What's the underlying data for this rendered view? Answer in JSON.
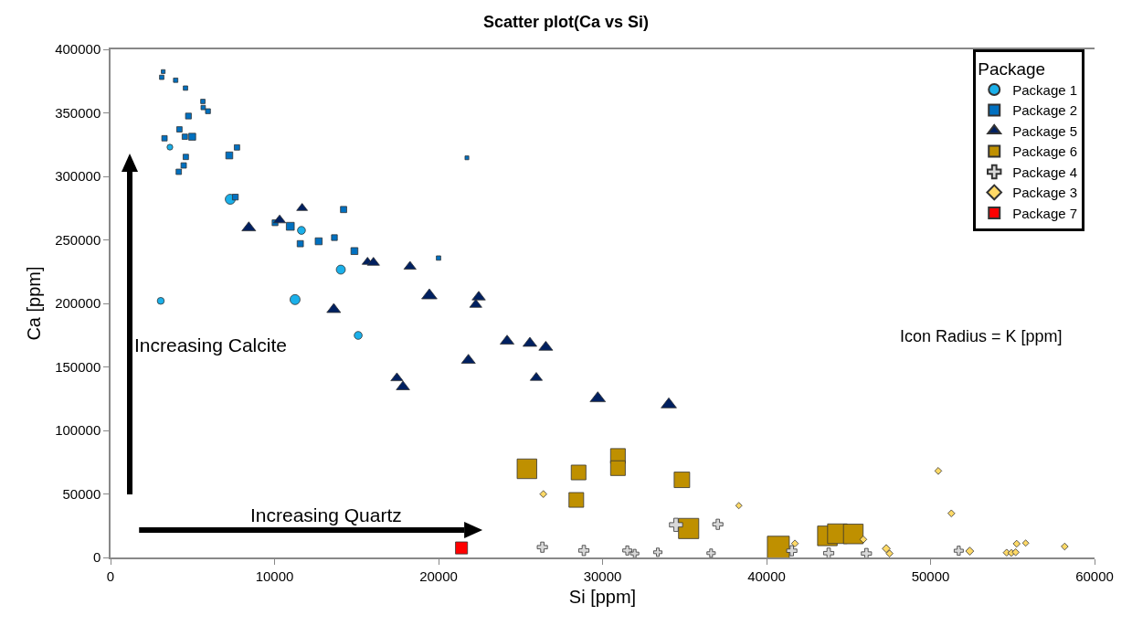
{
  "chart_data": {
    "type": "bubble",
    "title": "Scatter plot(Ca vs Si)",
    "xlabel": "Si [ppm]",
    "ylabel": "Ca [ppm]",
    "legend_title": "Package",
    "legend": "top right",
    "grid": false,
    "xlim": [
      0,
      60000
    ],
    "xticks": [
      0,
      10000,
      20000,
      30000,
      40000,
      50000,
      60000
    ],
    "ylim": [
      0,
      400000
    ],
    "yticks": [
      0,
      50000,
      100000,
      150000,
      200000,
      250000,
      300000,
      350000,
      400000
    ],
    "annotations": [
      "Increasing Calcite",
      "Increasing Quartz",
      "Icon Radius = K [ppm]"
    ],
    "series": [
      {
        "name": "Package 1",
        "color": "#1ab0ea",
        "marker": "circle",
        "x": [
          3620,
          7300,
          3060,
          11640,
          11250,
          14040,
          15100
        ],
        "values": [
          323000,
          282000,
          202000,
          257500,
          203000,
          226600,
          174800
        ],
        "sizes": [
          0.07,
          0.21,
          0.1,
          0.13,
          0.21,
          0.17,
          0.13
        ]
      },
      {
        "name": "Package 2",
        "color": "#0070c0",
        "marker": "square",
        "x": [
          3210,
          3120,
          3970,
          4570,
          5630,
          5650,
          5940,
          4750,
          4200,
          3290,
          4530,
          4980,
          7710,
          7240,
          4590,
          4460,
          4160,
          7610,
          21730,
          10030,
          10960,
          14210,
          11570,
          12690,
          13650,
          14870,
          20000
        ],
        "values": [
          382500,
          378000,
          375700,
          369500,
          359000,
          354200,
          351300,
          347500,
          337000,
          330000,
          331200,
          331200,
          322800,
          316500,
          315300,
          308600,
          303600,
          283700,
          314600,
          263500,
          260700,
          273900,
          247000,
          248900,
          251800,
          241200,
          235700
        ],
        "sizes": [
          0.03,
          0.04,
          0.04,
          0.04,
          0.04,
          0.04,
          0.05,
          0.07,
          0.06,
          0.06,
          0.06,
          0.1,
          0.06,
          0.1,
          0.06,
          0.06,
          0.06,
          0.07,
          0.03,
          0.07,
          0.13,
          0.08,
          0.08,
          0.1,
          0.07,
          0.1,
          0.04
        ]
      },
      {
        "name": "Package 5",
        "color": "#002060",
        "marker": "triangle",
        "x": [
          11680,
          10310,
          8430,
          15670,
          16030,
          18260,
          19440,
          22450,
          22270,
          13610,
          24180,
          25570,
          26540,
          21820,
          25960,
          17460,
          17830,
          29710,
          34040
        ],
        "values": [
          275000,
          265500,
          259500,
          232600,
          232100,
          229000,
          206200,
          205000,
          199000,
          195200,
          170300,
          168600,
          165500,
          155200,
          141500,
          141200,
          134300,
          125200,
          120400
        ],
        "sizes": [
          0.08,
          0.1,
          0.13,
          0.08,
          0.1,
          0.1,
          0.16,
          0.12,
          0.1,
          0.13,
          0.13,
          0.13,
          0.13,
          0.13,
          0.1,
          0.1,
          0.12,
          0.16,
          0.16
        ]
      },
      {
        "name": "Package 6",
        "color": "#bf9000",
        "marker": "square",
        "x": [
          25390,
          28540,
          30940,
          30940,
          28400,
          34840,
          35250,
          40720,
          43710,
          44320,
          45290
        ],
        "values": [
          69800,
          66900,
          79900,
          70300,
          45300,
          61100,
          22800,
          8100,
          17000,
          18700,
          18500
        ],
        "sizes": [
          0.8,
          0.45,
          0.45,
          0.45,
          0.45,
          0.5,
          0.85,
          1,
          0.8,
          0.8,
          0.8
        ]
      },
      {
        "name": "Package 4",
        "color": "#d9d9d9",
        "marker": "cross",
        "x": [
          26330,
          28860,
          31510,
          31960,
          33370,
          36620,
          34480,
          37030,
          41540,
          43790,
          46090,
          51720
        ],
        "values": [
          8100,
          5500,
          5500,
          3100,
          4100,
          3400,
          25700,
          26100,
          5300,
          3400,
          3100,
          5300
        ],
        "sizes": [
          0.15,
          0.15,
          0.12,
          0.1,
          0.1,
          0.1,
          0.25,
          0.15,
          0.15,
          0.15,
          0.15,
          0.12
        ]
      },
      {
        "name": "Package 3",
        "color": "#ffd966",
        "marker": "diamond",
        "x": [
          26390,
          38310,
          41730,
          45900,
          47300,
          47500,
          50470,
          51270,
          52390,
          54640,
          54930,
          55190,
          55250,
          55800,
          58180
        ],
        "values": [
          49900,
          40800,
          11000,
          14200,
          7000,
          3100,
          68100,
          34700,
          5000,
          3800,
          3600,
          4100,
          10800,
          11300,
          8600
        ],
        "sizes": [
          0.06,
          0.05,
          0.06,
          0.06,
          0.08,
          0.06,
          0.06,
          0.06,
          0.08,
          0.06,
          0.06,
          0.06,
          0.06,
          0.05,
          0.06
        ]
      },
      {
        "name": "Package 7",
        "color": "#ff0000",
        "marker": "square",
        "x": [
          21400
        ],
        "values": [
          7500
        ],
        "sizes": [
          0.3
        ]
      }
    ]
  }
}
